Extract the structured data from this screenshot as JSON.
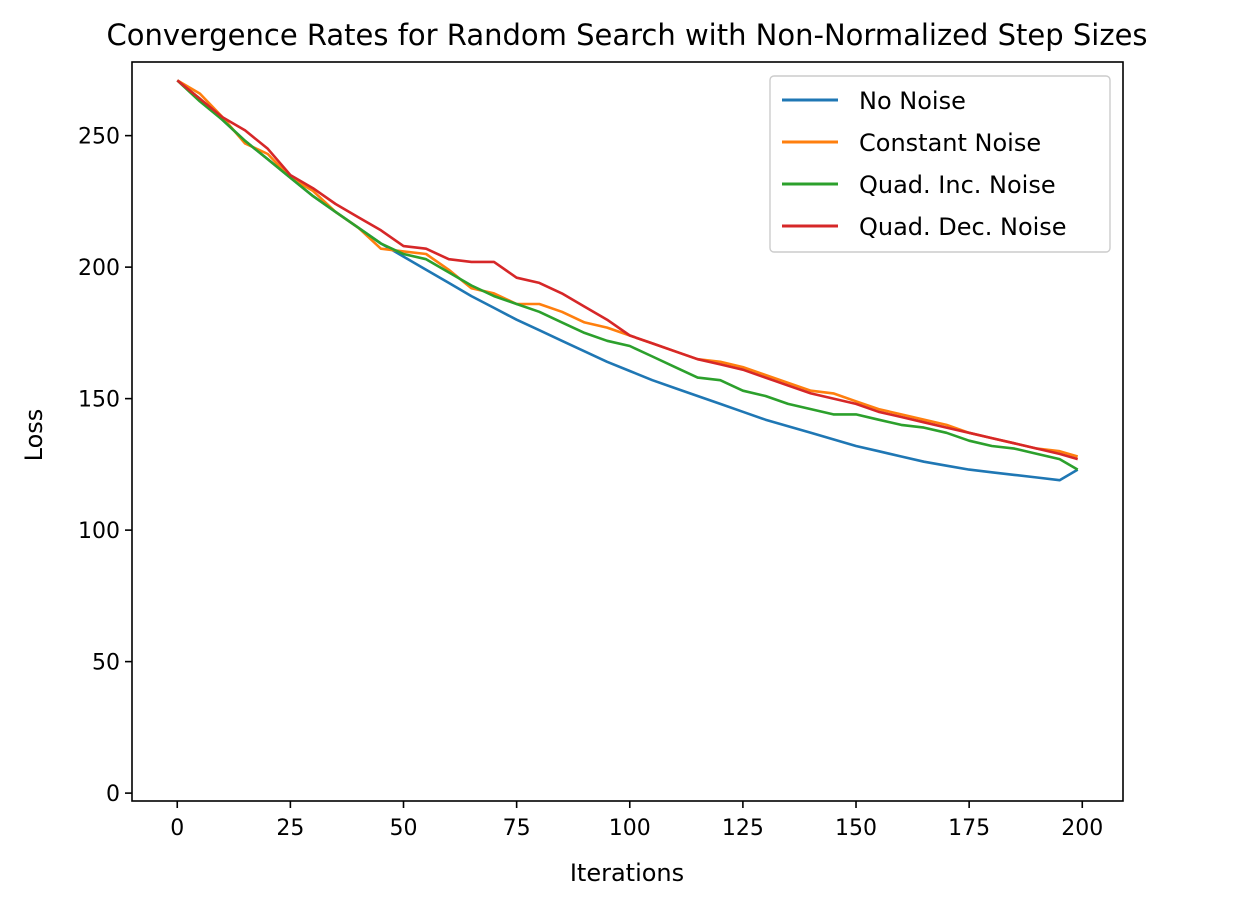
{
  "chart_data": {
    "type": "line",
    "title": "Convergence Rates for Random Search with Non-Normalized Step Sizes",
    "xlabel": "Iterations",
    "ylabel": "Loss",
    "xlim": [
      -10,
      209
    ],
    "ylim": [
      -3,
      278
    ],
    "xticks": [
      0,
      25,
      50,
      75,
      100,
      125,
      150,
      175,
      200
    ],
    "yticks": [
      0,
      50,
      100,
      150,
      200,
      250
    ],
    "grid": false,
    "legend_position": "top-right",
    "x": [
      0,
      5,
      10,
      15,
      20,
      25,
      30,
      35,
      40,
      45,
      50,
      55,
      60,
      65,
      70,
      75,
      80,
      85,
      90,
      95,
      100,
      105,
      110,
      115,
      120,
      125,
      130,
      135,
      140,
      145,
      150,
      155,
      160,
      165,
      170,
      175,
      180,
      185,
      190,
      195,
      199
    ],
    "series": [
      {
        "name": "No Noise",
        "color": "#1f77b4",
        "values": [
          271,
          264,
          256,
          248,
          241,
          234,
          227,
          221,
          215,
          209,
          204,
          199,
          194,
          189,
          184.5,
          180,
          176,
          172,
          168,
          164,
          160.5,
          157,
          154,
          151,
          148,
          145,
          142,
          139.5,
          137,
          134.5,
          132,
          130,
          128,
          126,
          124.5,
          123,
          122,
          121,
          120,
          119,
          123
        ]
      },
      {
        "name": "Constant Noise",
        "color": "#ff7f0e",
        "values": [
          271,
          266,
          257,
          247,
          243,
          234,
          229,
          221,
          215,
          207,
          206,
          205,
          199,
          192,
          190,
          186,
          186,
          183,
          179,
          177,
          174,
          171,
          168,
          165,
          164,
          162,
          159,
          156,
          153,
          152,
          149,
          146,
          144,
          142,
          140,
          137,
          135,
          133,
          131,
          130,
          128
        ]
      },
      {
        "name": "Quad. Inc. Noise",
        "color": "#2ca02c",
        "values": [
          271,
          263,
          256,
          248,
          241,
          234,
          227,
          221,
          215,
          209,
          205,
          203,
          198,
          193,
          189,
          186,
          183,
          179,
          175,
          172,
          170,
          166,
          162,
          158,
          157,
          153,
          151,
          148,
          146,
          144,
          144,
          142,
          140,
          139,
          137,
          134,
          132,
          131,
          129,
          127,
          123
        ]
      },
      {
        "name": "Quad. Dec. Noise",
        "color": "#d62728",
        "values": [
          271,
          264,
          257,
          252,
          245,
          235,
          230,
          224,
          219,
          214,
          208,
          207,
          203,
          202,
          202,
          196,
          194,
          190,
          185,
          180,
          174,
          171,
          168,
          165,
          163,
          161,
          158,
          155,
          152,
          150,
          148,
          145,
          143,
          141,
          139,
          137,
          135,
          133,
          131,
          129,
          127
        ]
      }
    ]
  }
}
